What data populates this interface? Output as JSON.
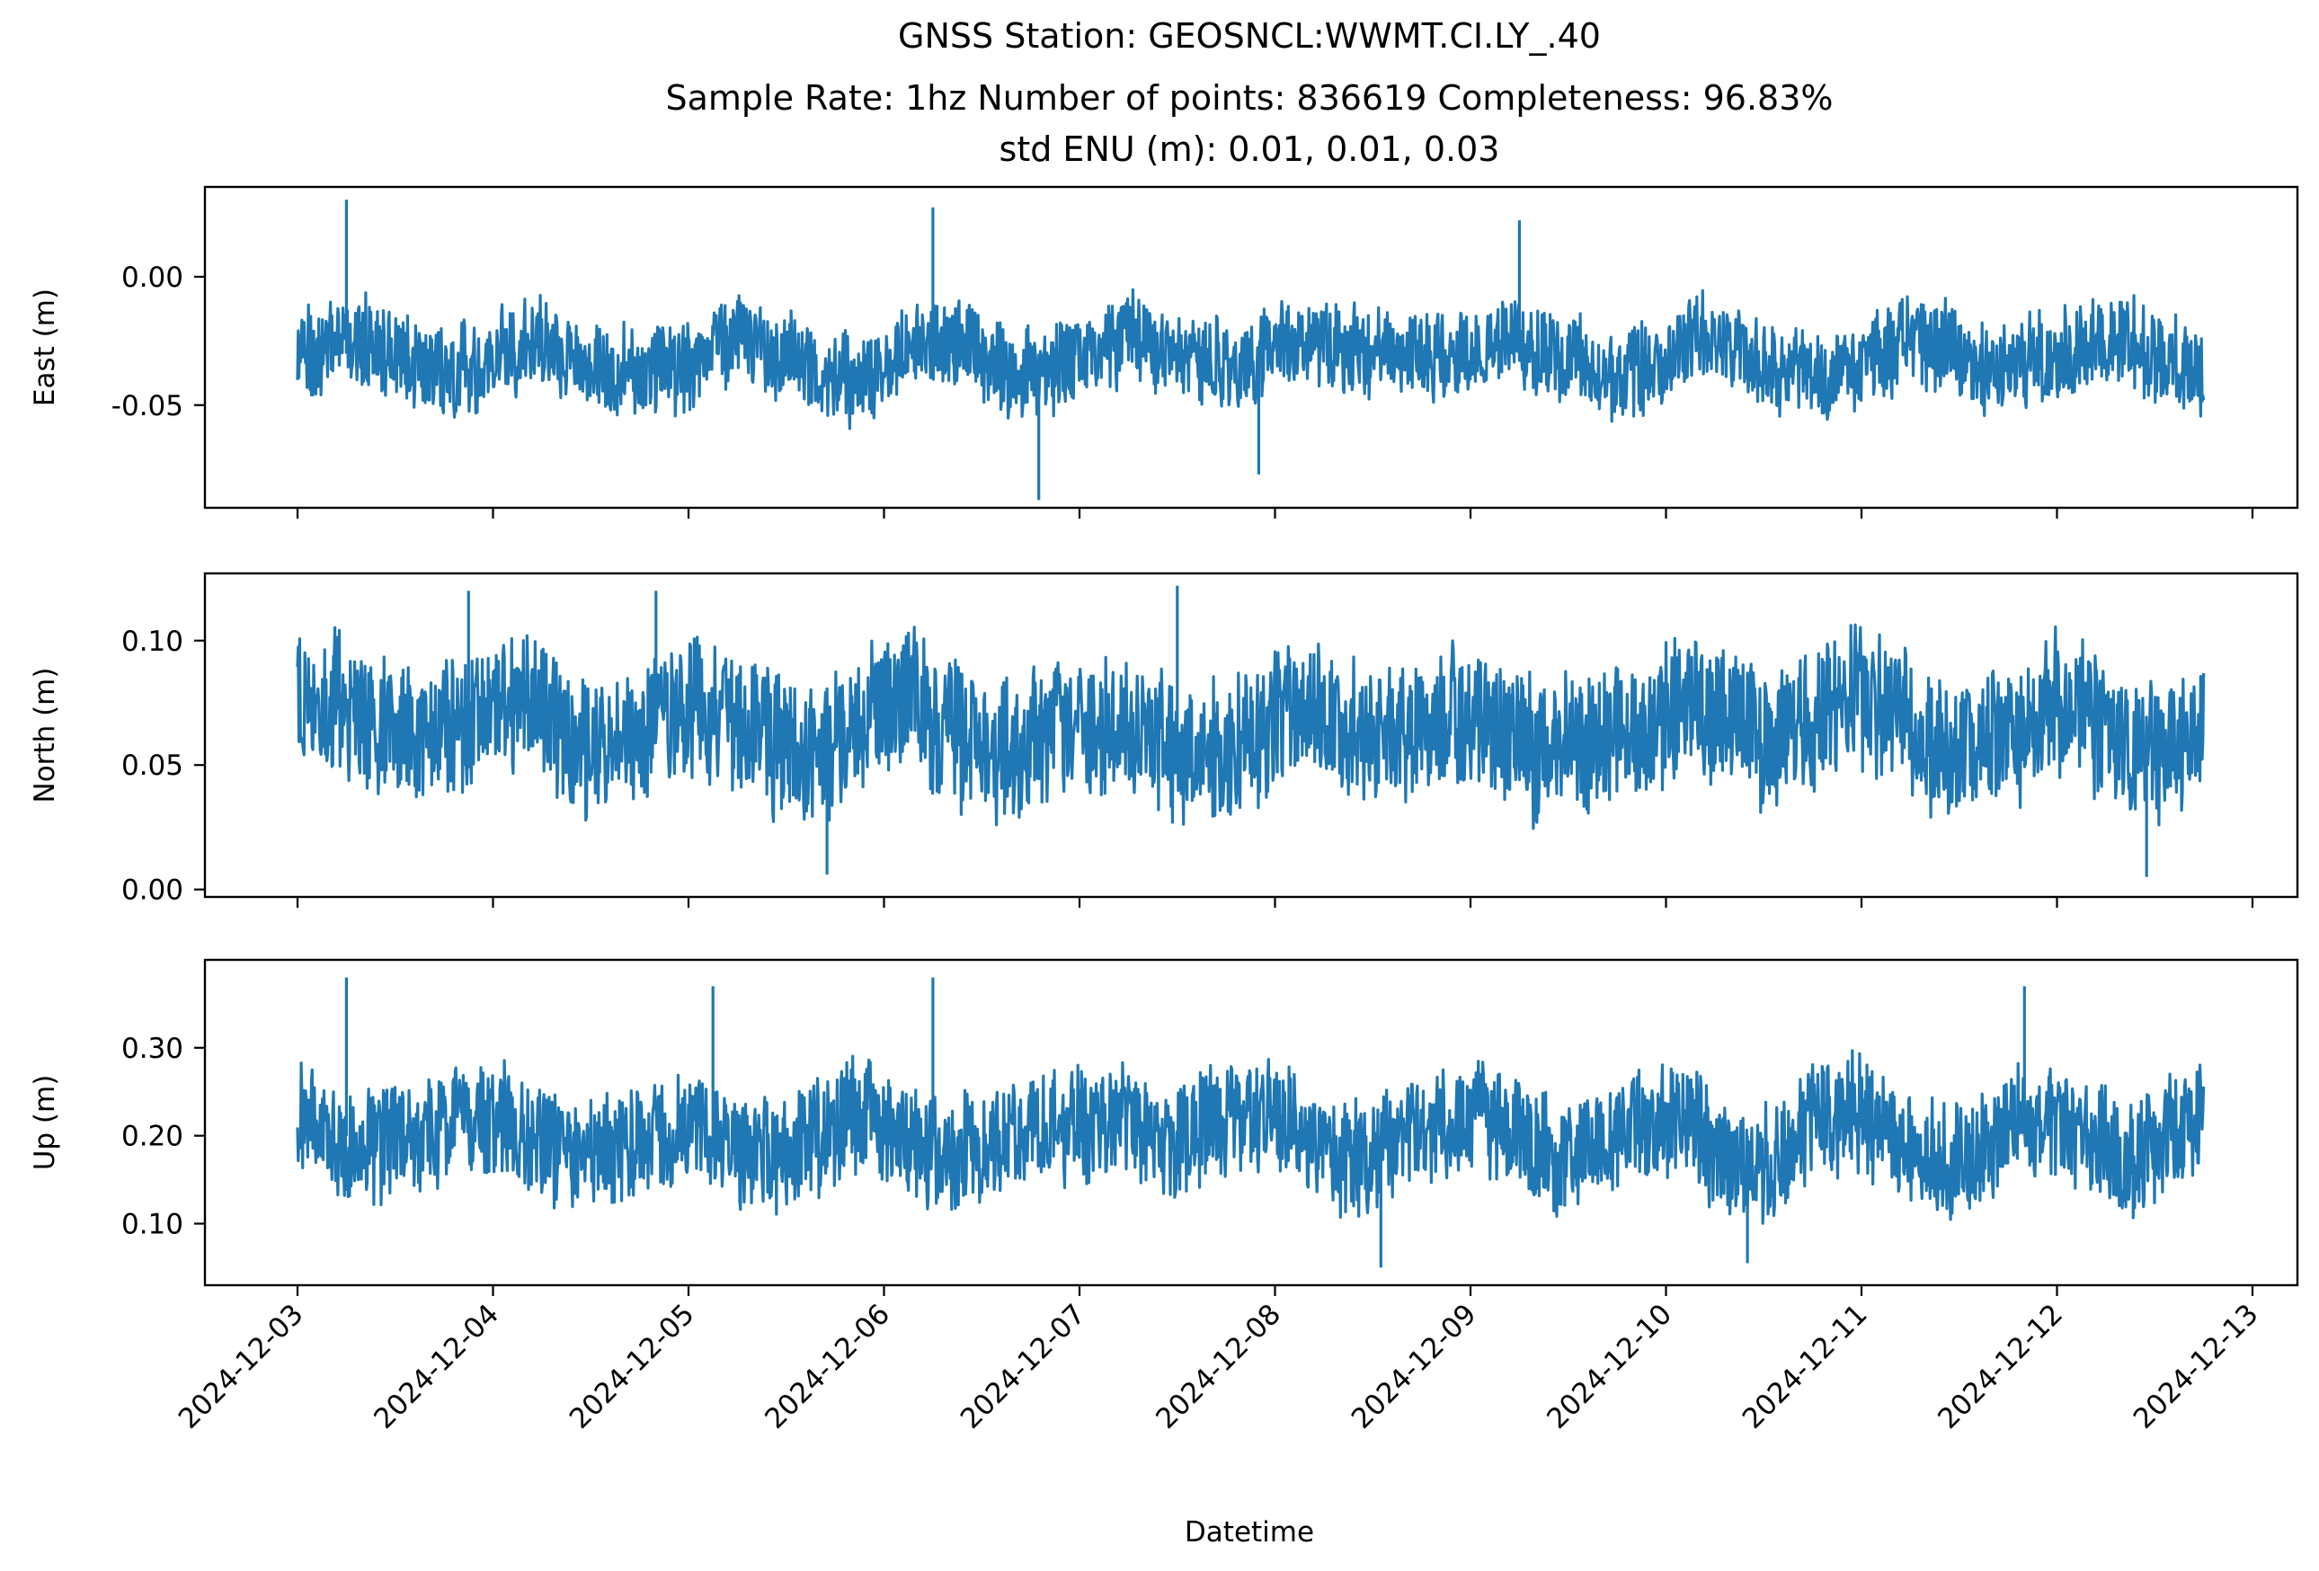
{
  "title": {
    "line1": "GNSS Station: GEOSNCL:WWMT.CI.LY_.40",
    "line2": "Sample Rate: 1hz   Number of points: 836619    Completeness:  96.83%",
    "line3": "std ENU (m):  0.01, 0.01, 0.03"
  },
  "xlabel": "Datetime",
  "chart_data": {
    "type": "line",
    "title": "GNSS Station: GEOSNCL:WWMT.CI.LY_.40",
    "subtitle": [
      "Sample Rate: 1hz   Number of points: 836619    Completeness:  96.83%",
      "std ENU (m):  0.01, 0.01, 0.03"
    ],
    "xlabel": "Datetime",
    "x_ticks": [
      "2024-12-03",
      "2024-12-04",
      "2024-12-05",
      "2024-12-06",
      "2024-12-07",
      "2024-12-08",
      "2024-12-09",
      "2024-12-10",
      "2024-12-11",
      "2024-12-12",
      "2024-12-13"
    ],
    "xlim": [
      "2024-12-02T12:00",
      "2024-12-13T00:00"
    ],
    "x_range": [
      "2024-12-03T00:00",
      "2024-12-12T18:00"
    ],
    "line_color": "#1f77b4",
    "grid": false,
    "legend": "none",
    "panels": [
      {
        "ylabel": "East (m)",
        "ylim": [
          -0.09,
          0.035
        ],
        "y_ticks": [
          0.0,
          -0.05
        ],
        "y_tick_labels": [
          "0.00",
          "-0.05"
        ],
        "baseline": -0.03,
        "envelope": {
          "min": -0.087,
          "max": 0.03,
          "typical_low": -0.05,
          "typical_high": -0.01
        },
        "peaks": [
          {
            "x": "2024-12-03T06:00",
            "y": 0.03
          },
          {
            "x": "2024-12-06T06:00",
            "y": 0.027
          },
          {
            "x": "2024-12-09T06:00",
            "y": 0.022
          },
          {
            "x": "2024-12-06T19:00",
            "y": -0.087
          },
          {
            "x": "2024-12-07T22:00",
            "y": -0.077
          }
        ]
      },
      {
        "ylabel": "North (m)",
        "ylim": [
          -0.003,
          0.127
        ],
        "y_ticks": [
          0.1,
          0.05,
          0.0
        ],
        "y_tick_labels": [
          "0.10",
          "0.05",
          "0.00"
        ],
        "baseline": 0.065,
        "envelope": {
          "min": 0.005,
          "max": 0.122,
          "typical_low": 0.035,
          "typical_high": 0.1
        },
        "peaks": [
          {
            "x": "2024-12-07T12:00",
            "y": 0.122
          },
          {
            "x": "2024-12-03T21:00",
            "y": 0.12
          },
          {
            "x": "2024-12-04T20:00",
            "y": 0.12
          },
          {
            "x": "2024-12-05T17:00",
            "y": 0.006
          },
          {
            "x": "2024-12-12T11:00",
            "y": 0.005
          }
        ]
      },
      {
        "ylabel": "Up (m)",
        "ylim": [
          0.03,
          0.4
        ],
        "y_ticks": [
          0.3,
          0.2,
          0.1
        ],
        "y_tick_labels": [
          "0.30",
          "0.20",
          "0.10"
        ],
        "baseline": 0.2,
        "envelope": {
          "min": 0.05,
          "max": 0.38,
          "typical_low": 0.12,
          "typical_high": 0.27
        },
        "peaks": [
          {
            "x": "2024-12-03T06:00",
            "y": 0.38
          },
          {
            "x": "2024-12-06T06:00",
            "y": 0.38
          },
          {
            "x": "2024-12-05T03:00",
            "y": 0.37
          },
          {
            "x": "2024-12-11T20:00",
            "y": 0.37
          },
          {
            "x": "2024-12-08T13:00",
            "y": 0.05
          },
          {
            "x": "2024-12-10T10:00",
            "y": 0.055
          }
        ]
      }
    ]
  }
}
